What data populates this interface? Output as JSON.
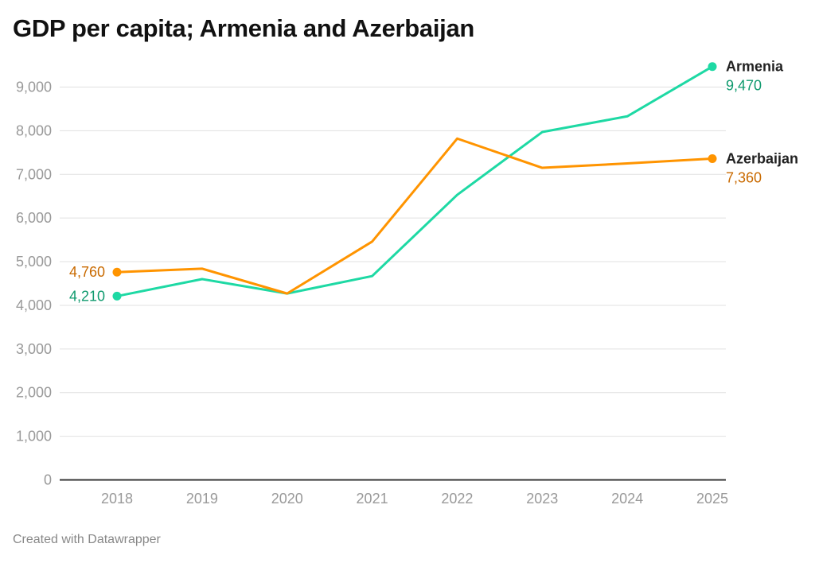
{
  "chart_data": {
    "type": "line",
    "title": "GDP per capita; Armenia and Azerbaijan",
    "x": [
      2018,
      2019,
      2020,
      2021,
      2022,
      2023,
      2024,
      2025
    ],
    "ylim": [
      0,
      9000
    ],
    "yticks": [
      "0",
      "1,000",
      "2,000",
      "3,000",
      "4,000",
      "5,000",
      "6,000",
      "7,000",
      "8,000",
      "9,000"
    ],
    "grid": true,
    "legend": "direct labels at line ends",
    "series": [
      {
        "name": "Armenia",
        "color": "#1ed9a4",
        "label_color": "#0f9a6e",
        "values": [
          4210,
          4600,
          4270,
          4670,
          6530,
          7970,
          8330,
          9470
        ],
        "start_label": "4,210",
        "end_label": "9,470"
      },
      {
        "name": "Azerbaijan",
        "color": "#ff9400",
        "label_color": "#c96a00",
        "values": [
          4760,
          4840,
          4270,
          5460,
          7820,
          7150,
          7250,
          7360
        ],
        "start_label": "4,760",
        "end_label": "7,360"
      }
    ]
  },
  "footer": "Created with Datawrapper"
}
